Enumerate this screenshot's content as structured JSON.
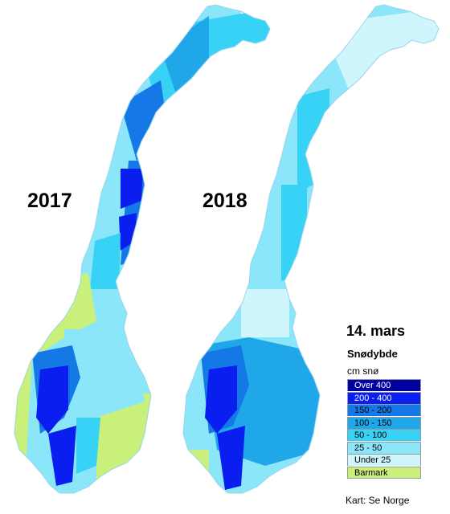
{
  "years": [
    "2017",
    "2018"
  ],
  "legend": {
    "date": "14. mars",
    "title": "Snødybde",
    "unit": "cm snø",
    "classes": [
      {
        "label": "Over 400",
        "color": "#0000a0"
      },
      {
        "label": "200 - 400",
        "color": "#0a1ef0"
      },
      {
        "label": "150 - 200",
        "color": "#1478e6"
      },
      {
        "label": "100 - 150",
        "color": "#1fa7ea"
      },
      {
        "label": "50 - 100",
        "color": "#37d2f5"
      },
      {
        "label": "25 - 50",
        "color": "#8be6fa"
      },
      {
        "label": "Under 25",
        "color": "#cff6fd"
      },
      {
        "label": "Barmark",
        "color": "#c8f07a"
      }
    ]
  },
  "credit": "Kart: Se Norge"
}
